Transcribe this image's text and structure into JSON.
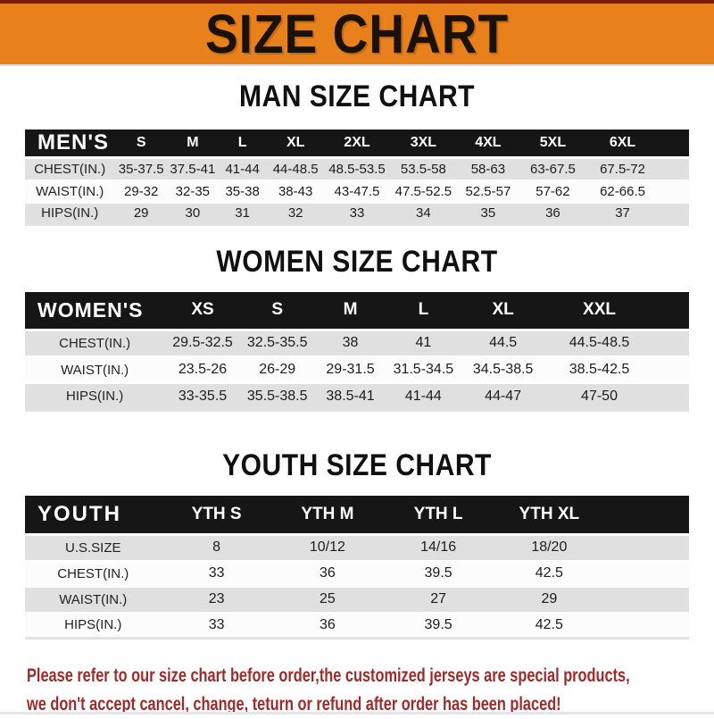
{
  "banner": {
    "title": "SIZE CHART"
  },
  "headings": {
    "men": "MAN SIZE CHART",
    "women": "WOMEN SIZE CHART",
    "youth": "YOUTH SIZE CHART"
  },
  "tables": {
    "men": {
      "label": "MEN'S",
      "columns": [
        "S",
        "M",
        "L",
        "XL",
        "2XL",
        "3XL",
        "4XL",
        "5XL",
        "6XL"
      ],
      "rows": [
        {
          "label": "CHEST(IN.)",
          "values": [
            "35-37.5",
            "37.5-41",
            "41-44",
            "44-48.5",
            "48.5-53.5",
            "53.5-58",
            "58-63",
            "63-67.5",
            "67.5-72"
          ]
        },
        {
          "label": "WAIST(IN.)",
          "values": [
            "29-32",
            "32-35",
            "35-38",
            "38-43",
            "43-47.5",
            "47.5-52.5",
            "52.5-57",
            "57-62",
            "62-66.5"
          ]
        },
        {
          "label": "HIPS(IN.)",
          "values": [
            "29",
            "30",
            "31",
            "32",
            "33",
            "34",
            "35",
            "36",
            "37"
          ]
        }
      ]
    },
    "women": {
      "label": "WOMEN'S",
      "columns": [
        "XS",
        "S",
        "M",
        "L",
        "XL",
        "XXL"
      ],
      "rows": [
        {
          "label": "CHEST(IN.)",
          "values": [
            "29.5-32.5",
            "32.5-35.5",
            "38",
            "41",
            "44.5",
            "44.5-48.5"
          ]
        },
        {
          "label": "WAIST(IN.)",
          "values": [
            "23.5-26",
            "26-29",
            "29-31.5",
            "31.5-34.5",
            "34.5-38.5",
            "38.5-42.5"
          ]
        },
        {
          "label": "HIPS(IN.)",
          "values": [
            "33-35.5",
            "35.5-38.5",
            "38.5-41",
            "41-44",
            "44-47",
            "47-50"
          ]
        }
      ]
    },
    "youth": {
      "label": "YOUTH",
      "columns": [
        "YTH S",
        "YTH M",
        "YTH L",
        "YTH XL"
      ],
      "rows": [
        {
          "label": "U.S.SIZE",
          "values": [
            "8",
            "10/12",
            "14/16",
            "18/20"
          ]
        },
        {
          "label": "CHEST(IN.)",
          "values": [
            "33",
            "36",
            "39.5",
            "42.5"
          ]
        },
        {
          "label": "WAIST(IN.)",
          "values": [
            "23",
            "25",
            "27",
            "29"
          ]
        },
        {
          "label": "HIPS(IN.)",
          "values": [
            "33",
            "36",
            "39.5",
            "42.5"
          ]
        }
      ]
    }
  },
  "disclaimer": {
    "line1": "Please refer to our size chart before order,the customized jerseys are special products,",
    "line2": "we don't accept cancel, change, teturn or refund after order has been placed!"
  },
  "colors": {
    "banner_orange": "#E8811C",
    "banner_top_line": "#7C1A0C",
    "header_black": "#161616",
    "row_gray": "#E0E0E0",
    "row_white": "#FCFCFC",
    "disclaimer_red": "#9E2A2B"
  }
}
